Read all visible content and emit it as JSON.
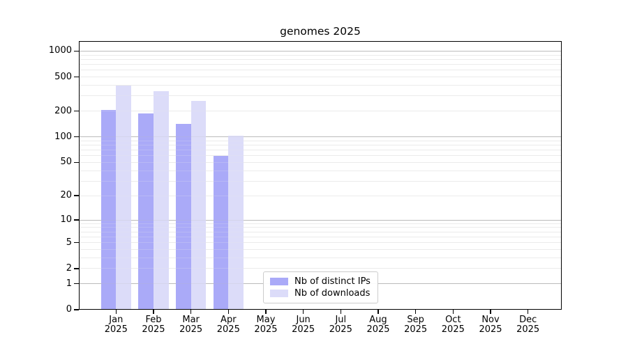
{
  "title": "genomes 2025",
  "colors": {
    "ips_bar": "#aaaaf8",
    "downloads_bar": "#dcdcf9",
    "grid_major": "#bbbbbb",
    "grid_minor": "#ebebeb",
    "axis_frame": "#000000",
    "legend_border": "#cccccc",
    "background": "#ffffff",
    "text": "#000000"
  },
  "legend": {
    "items": [
      {
        "label": "Nb of distinct IPs",
        "series_key": "ips"
      },
      {
        "label": "Nb of downloads",
        "series_key": "downloads"
      }
    ]
  },
  "y_axis": {
    "scale": "log10(value+1)",
    "tick_labels": [
      "0",
      "1",
      "2",
      "5",
      "10",
      "20",
      "50",
      "100",
      "200",
      "500",
      "1000"
    ],
    "tick_values": [
      0,
      1,
      2,
      5,
      10,
      20,
      50,
      100,
      200,
      500,
      1000
    ],
    "gridline_values_major": [
      1,
      10,
      100,
      1000
    ],
    "gridline_values_minor": [
      2,
      3,
      4,
      5,
      6,
      7,
      8,
      9,
      20,
      30,
      40,
      50,
      60,
      70,
      80,
      90,
      200,
      300,
      400,
      500,
      600,
      700,
      800,
      900
    ],
    "top_value": 1306
  },
  "x_axis": {
    "months": [
      {
        "month": "Jan",
        "year": "2025"
      },
      {
        "month": "Feb",
        "year": "2025"
      },
      {
        "month": "Mar",
        "year": "2025"
      },
      {
        "month": "Apr",
        "year": "2025"
      },
      {
        "month": "May",
        "year": "2025"
      },
      {
        "month": "Jun",
        "year": "2025"
      },
      {
        "month": "Jul",
        "year": "2025"
      },
      {
        "month": "Aug",
        "year": "2025"
      },
      {
        "month": "Sep",
        "year": "2025"
      },
      {
        "month": "Oct",
        "year": "2025"
      },
      {
        "month": "Nov",
        "year": "2025"
      },
      {
        "month": "Dec",
        "year": "2025"
      }
    ]
  },
  "chart_data": {
    "type": "bar",
    "title": "genomes 2025",
    "categories": [
      "Jan 2025",
      "Feb 2025",
      "Mar 2025",
      "Apr 2025",
      "May 2025",
      "Jun 2025",
      "Jul 2025",
      "Aug 2025",
      "Sep 2025",
      "Oct 2025",
      "Nov 2025",
      "Dec 2025"
    ],
    "series": [
      {
        "name": "Nb of distinct IPs",
        "color": "#aaaaf8",
        "values": [
          208,
          188,
          142,
          60,
          null,
          null,
          null,
          null,
          null,
          null,
          null,
          null
        ]
      },
      {
        "name": "Nb of downloads",
        "color": "#dcdcf9",
        "values": [
          395,
          345,
          265,
          103,
          null,
          null,
          null,
          null,
          null,
          null,
          null,
          null
        ]
      }
    ],
    "yscale": "log10(value+1)",
    "ylim": [
      0,
      1306
    ],
    "yticks": [
      0,
      1,
      2,
      5,
      10,
      20,
      50,
      100,
      200,
      500,
      1000
    ],
    "grid": true,
    "legend_position": "bottom-center-inside"
  }
}
